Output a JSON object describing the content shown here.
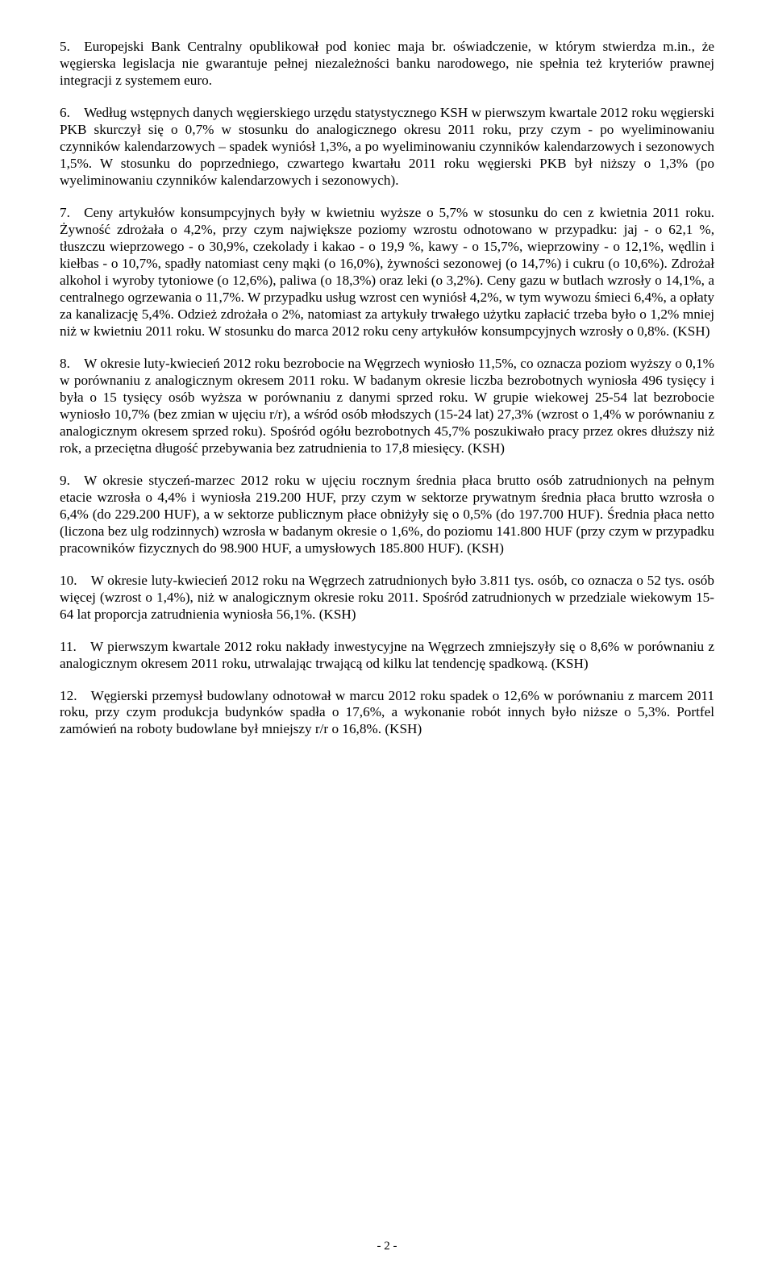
{
  "paragraphs": {
    "p5": "5. Europejski Bank Centralny opublikował pod koniec maja br. oświadczenie, w którym stwierdza m.in., że węgierska legislacja nie gwarantuje pełnej niezależności banku narodowego, nie spełnia też kryteriów prawnej integracji z systemem euro.",
    "p6": "6. Według wstępnych danych węgierskiego urzędu statystycznego KSH w pierwszym kwartale 2012 roku węgierski PKB skurczył się o 0,7% w stosunku do analogicznego okresu 2011 roku, przy czym - po wyeliminowaniu czynników kalendarzowych – spadek wyniósł 1,3%, a po wyeliminowaniu czynników kalendarzowych i sezonowych 1,5%. W stosunku do poprzedniego, czwartego kwartału 2011 roku węgierski PKB był niższy o 1,3% (po wyeliminowaniu czynników kalendarzowych i sezonowych).",
    "p7": "7. Ceny artykułów konsumpcyjnych były w kwietniu wyższe o 5,7% w stosunku do cen z kwietnia 2011 roku. Żywność zdrożała o 4,2%, przy czym największe poziomy wzrostu odnotowano w przypadku: jaj - o 62,1 %, tłuszczu wieprzowego - o 30,9%, czekolady i kakao - o 19,9 %, kawy - o 15,7%, wieprzowiny - o 12,1%, wędlin i kiełbas - o 10,7%, spadły natomiast ceny mąki (o 16,0%), żywności sezonowej (o 14,7%) i cukru (o 10,6%). Zdrożał alkohol i wyroby tytoniowe (o 12,6%), paliwa (o 18,3%) oraz leki (o 3,2%). Ceny gazu w butlach wzrosły o 14,1%, a centralnego ogrzewania o 11,7%. W przypadku usług wzrost cen wyniósł 4,2%, w tym wywozu śmieci 6,4%, a opłaty za kanalizację 5,4%. Odzież zdrożała o 2%, natomiast za artykuły trwałego użytku zapłacić trzeba było o 1,2% mniej niż w kwietniu 2011 roku. W stosunku do marca 2012 roku ceny artykułów konsumpcyjnych wzrosły o 0,8%. (KSH)",
    "p8": "8. W okresie luty-kwiecień 2012 roku bezrobocie na Węgrzech wyniosło 11,5%, co oznacza poziom wyższy o 0,1% w porównaniu z analogicznym okresem 2011 roku. W badanym okresie liczba bezrobotnych wyniosła 496 tysięcy i była o 15 tysięcy osób wyższa w porównaniu z danymi sprzed roku. W grupie wiekowej 25-54 lat bezrobocie wyniosło 10,7% (bez zmian w ujęciu r/r), a wśród osób młodszych (15-24 lat) 27,3% (wzrost o 1,4% w porównaniu z analogicznym okresem sprzed roku). Spośród ogółu bezrobotnych 45,7% poszukiwało pracy przez okres dłuższy niż rok, a przeciętna długość przebywania bez zatrudnienia to 17,8 miesięcy. (KSH)",
    "p9": "9. W okresie styczeń-marzec 2012 roku w ujęciu rocznym średnia płaca brutto osób zatrudnionych na pełnym etacie wzrosła o 4,4% i wyniosła 219.200 HUF, przy czym w sektorze prywatnym średnia płaca brutto wzrosła o 6,4% (do 229.200 HUF), a w sektorze publicznym płace obniżyły się o 0,5% (do 197.700 HUF). Średnia płaca netto (liczona bez ulg rodzinnych) wzrosła w badanym okresie o 1,6%, do poziomu 141.800 HUF (przy czym w przypadku pracowników fizycznych do 98.900 HUF, a umysłowych 185.800 HUF). (KSH)",
    "p10": "10. W okresie luty-kwiecień 2012 roku na Węgrzech zatrudnionych było 3.811 tys. osób, co oznacza o 52 tys. osób więcej (wzrost o 1,4%), niż w analogicznym okresie roku 2011. Spośród zatrudnionych w przedziale wiekowym 15-64 lat proporcja zatrudnienia wyniosła 56,1%. (KSH)",
    "p11": "11. W pierwszym kwartale 2012 roku nakłady inwestycyjne na Węgrzech zmniejszyły się o 8,6% w porównaniu z analogicznym okresem 2011 roku, utrwalając trwającą od kilku lat tendencję spadkową. (KSH)",
    "p12": "12. Węgierski przemysł budowlany odnotował w marcu 2012 roku spadek o 12,6% w porównaniu z marcem 2011 roku, przy czym produkcja budynków spadła o 17,6%, a wykonanie robót innych było niższe o 5,3%. Portfel zamówień na roboty budowlane był mniejszy r/r o 16,8%. (KSH)"
  },
  "footer": "- 2 -"
}
